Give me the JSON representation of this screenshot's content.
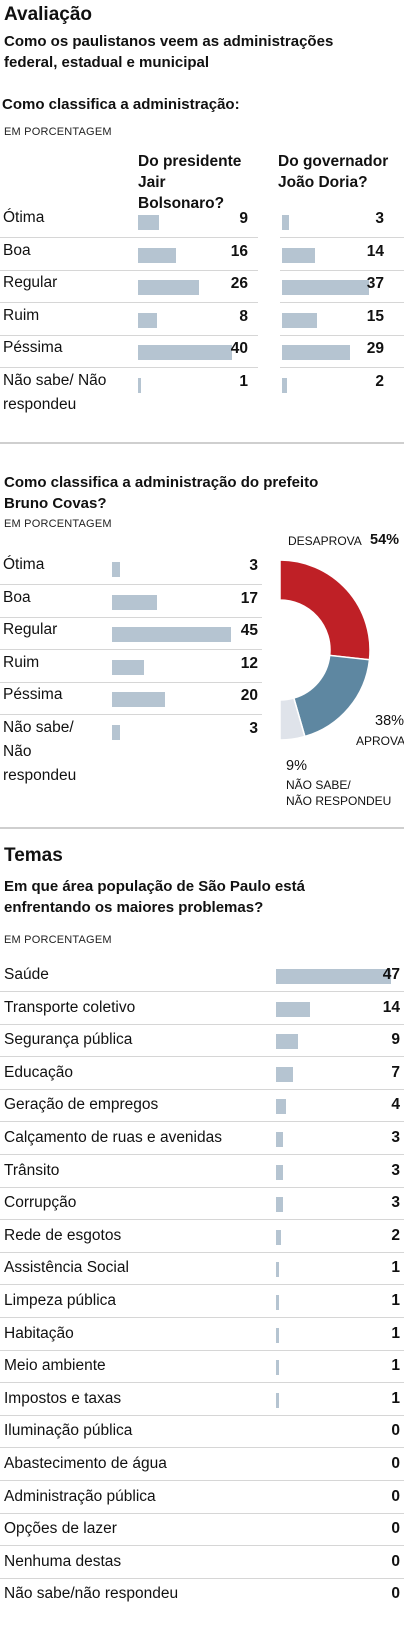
{
  "header": {
    "title": "Avaliação",
    "subtitle_line1": "Como os paulistanos veem as administrações",
    "subtitle_line2": "federal, estadual e municipal"
  },
  "section1": {
    "question": "Como classifica a administração:",
    "unit": "EM PORCENTAGEM",
    "col1": [
      "Do presidente",
      "Jair",
      "Bolsonaro?"
    ],
    "col2": [
      "Do governador",
      "João Doria?"
    ]
  },
  "section2": {
    "question_line1": "Como classifica a administração do prefeito",
    "question_line2": "Bruno Covas?",
    "unit": "EM PORCENTAGEM"
  },
  "donut": {
    "desaprova_label": "DESAPROVA",
    "desaprova_value": "54%",
    "aprova_label": "APROVA",
    "aprova_value": "38%",
    "naosabe_value": "9%",
    "naosabe_label1": "NÃO SABE/",
    "naosabe_label2": "NÃO RESPONDEU"
  },
  "section3": {
    "title": "Temas",
    "question_line1": "Em que área população de São Paulo está",
    "question_line2": "enfrentando os maiores problemas?",
    "unit": "EM PORCENTAGEM"
  },
  "colors": {
    "bar": "#b5c4d1",
    "desaprova": "#bf2026",
    "aprova": "#5e87a1",
    "naosabe": "#dfe3ea"
  },
  "chart_data": [
    {
      "type": "bar",
      "categories": [
        "Ótima",
        "Boa",
        "Regular",
        "Ruim",
        "Péssima",
        "Não sabe/ Não respondeu"
      ],
      "category_lines": [
        [
          "Ótima"
        ],
        [
          "Boa"
        ],
        [
          "Regular"
        ],
        [
          "Ruim"
        ],
        [
          "Péssima"
        ],
        [
          "Não sabe/ Não",
          "respondeu"
        ]
      ],
      "series": [
        {
          "name": "Do presidente Jair Bolsonaro?",
          "values": [
            9,
            16,
            26,
            8,
            40,
            1
          ]
        },
        {
          "name": "Do governador João Doria?",
          "values": [
            3,
            14,
            37,
            15,
            29,
            2
          ]
        }
      ]
    },
    {
      "type": "bar",
      "categories": [
        "Ótima",
        "Boa",
        "Regular",
        "Ruim",
        "Péssima",
        "Não sabe/ Não respondeu"
      ],
      "category_lines": [
        [
          "Ótima"
        ],
        [
          "Boa"
        ],
        [
          "Regular"
        ],
        [
          "Ruim"
        ],
        [
          "Péssima"
        ],
        [
          "Não sabe/",
          "Não",
          "respondeu"
        ]
      ],
      "values": [
        3,
        17,
        45,
        12,
        20,
        3
      ]
    },
    {
      "type": "pie",
      "categories": [
        "DESAPROVA",
        "APROVA",
        "NÃO SABE/ NÃO RESPONDEU"
      ],
      "values": [
        54,
        38,
        9
      ]
    },
    {
      "type": "bar",
      "categories": [
        "Saúde",
        "Transporte coletivo",
        "Segurança pública",
        "Educação",
        "Geração de empregos",
        "Calçamento de ruas e avenidas",
        "Trânsito",
        "Corrupção",
        "Rede de esgotos",
        "Assistência Social",
        "Limpeza pública",
        "Habitação",
        "Meio ambiente",
        "Impostos e taxas",
        "Iluminação pública",
        "Abastecimento de água",
        "Administração pública",
        "Opções de lazer",
        "Nenhuma destas",
        "Não sabe/não respondeu"
      ],
      "values": [
        47,
        14,
        9,
        7,
        4,
        3,
        3,
        3,
        2,
        1,
        1,
        1,
        1,
        1,
        0,
        0,
        0,
        0,
        0,
        0
      ]
    }
  ]
}
